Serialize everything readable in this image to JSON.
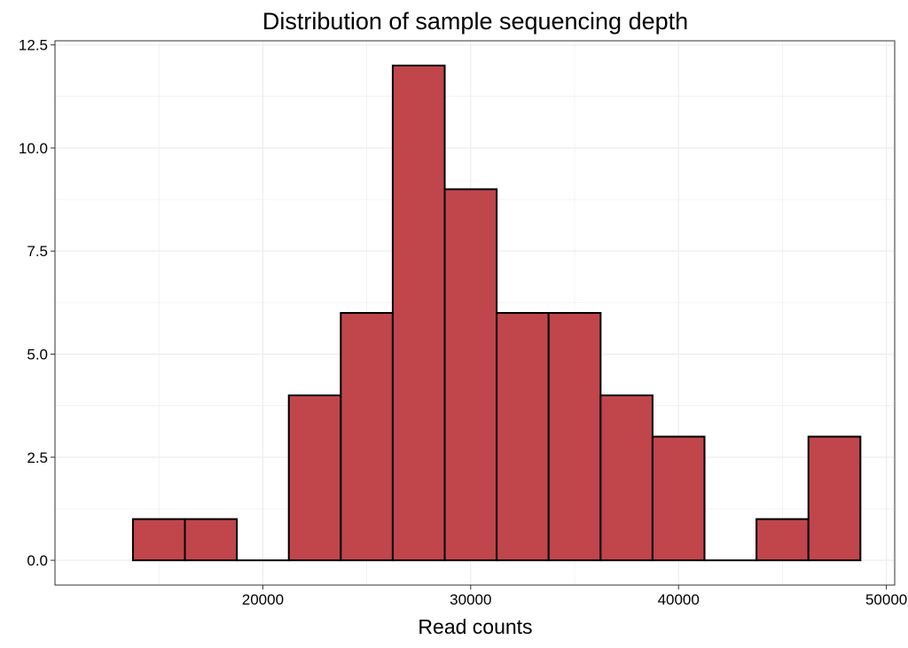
{
  "chart_data": {
    "type": "bar",
    "title": "Distribution of sample sequencing depth",
    "xlabel": "Read counts",
    "ylabel": "",
    "bin_width": 2500,
    "bins": [
      {
        "start": 13750,
        "end": 16250,
        "count": 1
      },
      {
        "start": 16250,
        "end": 18750,
        "count": 1
      },
      {
        "start": 18750,
        "end": 21250,
        "count": 0
      },
      {
        "start": 21250,
        "end": 23750,
        "count": 4
      },
      {
        "start": 23750,
        "end": 26250,
        "count": 6
      },
      {
        "start": 26250,
        "end": 28750,
        "count": 12
      },
      {
        "start": 28750,
        "end": 31250,
        "count": 9
      },
      {
        "start": 31250,
        "end": 33750,
        "count": 6
      },
      {
        "start": 33750,
        "end": 36250,
        "count": 6
      },
      {
        "start": 36250,
        "end": 38750,
        "count": 4
      },
      {
        "start": 38750,
        "end": 41250,
        "count": 3
      },
      {
        "start": 41250,
        "end": 43750,
        "count": 0
      },
      {
        "start": 43750,
        "end": 46250,
        "count": 1
      },
      {
        "start": 46250,
        "end": 48750,
        "count": 3
      }
    ],
    "xlim": [
      10000,
      50400
    ],
    "ylim": [
      -0.6,
      12.6
    ],
    "x_ticks": [
      20000,
      30000,
      40000,
      50000
    ],
    "x_tick_labels": [
      "20000",
      "30000",
      "40000",
      "50000"
    ],
    "y_ticks": [
      0,
      2.5,
      5,
      7.5,
      10,
      12.5
    ],
    "y_tick_labels": [
      "0.0",
      "2.5",
      "5.0",
      "7.5",
      "10.0",
      "12.5"
    ],
    "grid": true,
    "colors": {
      "bar_fill": "#c0464b",
      "bar_outline": "#000000",
      "grid": "#ebebeb",
      "panel_border": "#333333",
      "background": "#ffffff"
    }
  }
}
